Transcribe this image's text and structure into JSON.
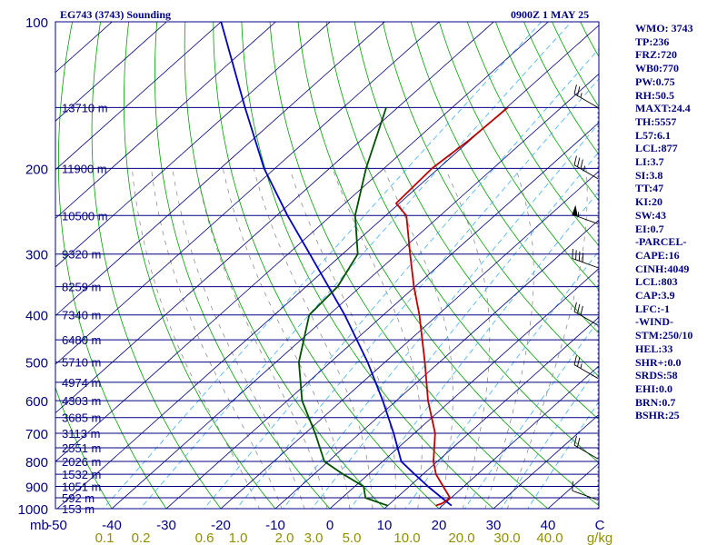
{
  "header": {
    "station": "EG743 (3743) Sounding",
    "time": "0900Z  1 MAY 25"
  },
  "indices": [
    "WMO: 3743",
    "TP:236",
    "FRZ:720",
    "WB0:770",
    "PW:0.75",
    "RH:50.5",
    "MAXT:24.4",
    "TH:5557",
    "L57:6.1",
    "LCL:877",
    "LI:3.7",
    "SI:3.8",
    "TT:47",
    "KI:20",
    "SW:43",
    "EI:0.7",
    "-PARCEL-",
    "CAPE:16",
    "CINH:4049",
    "LCL:803",
    "CAP:3.9",
    "LFC:-1",
    "-WIND-",
    "STM:250/10",
    "HEL:33",
    "SHR+:0.0",
    "SRDS:58",
    "EHI:0.0",
    "BRN:0.7",
    "BSHR:25"
  ],
  "colors": {
    "frame": "#000080",
    "isobar": "#000080",
    "isotherm": "#000080",
    "dry_adiabat": "#00a000",
    "moist_adiabat": "#808080",
    "mixing_ratio": "#40b0ff",
    "temperature": "#c00000",
    "dewpoint": "#005000",
    "parcel": "#0000c0",
    "axis_text": "#000080",
    "mixing_text": "#909000",
    "wind_barb": "#000000"
  },
  "chart_data": {
    "type": "skew-t",
    "pressure_labels": [
      "100",
      "200",
      "300",
      "400",
      "500",
      "600",
      "700",
      "800",
      "900",
      "1000"
    ],
    "pressure_unit": "mb",
    "height_labels": [
      {
        "p": 150,
        "label": "13710 m"
      },
      {
        "p": 200,
        "label": "11900 m"
      },
      {
        "p": 250,
        "label": "10500 m"
      },
      {
        "p": 300,
        "label": "9320 m"
      },
      {
        "p": 350,
        "label": "8259 m"
      },
      {
        "p": 400,
        "label": "7340 m"
      },
      {
        "p": 450,
        "label": "6480 m"
      },
      {
        "p": 500,
        "label": "5710 m"
      },
      {
        "p": 550,
        "label": "4974 m"
      },
      {
        "p": 600,
        "label": "4303 m"
      },
      {
        "p": 650,
        "label": "3685 m"
      },
      {
        "p": 700,
        "label": "3113 m"
      },
      {
        "p": 750,
        "label": "2551 m"
      },
      {
        "p": 800,
        "label": "2026 m"
      },
      {
        "p": 850,
        "label": "1532 m"
      },
      {
        "p": 900,
        "label": "1051 m"
      },
      {
        "p": 950,
        "label": "592 m"
      },
      {
        "p": 1000,
        "label": "153 m"
      }
    ],
    "temperature_ticks": [
      "-50",
      "-40",
      "-30",
      "-20",
      "-10",
      "0",
      "10",
      "20",
      "30",
      "40"
    ],
    "temperature_unit": "C",
    "mixing_ratio_labels": [
      "0.1",
      "0.2",
      "0.6",
      "1.0",
      "2.0",
      "3.0",
      "5.0",
      "10.0",
      "20.0",
      "30.0",
      "40.0"
    ],
    "mixing_ratio_unit": "g/kg",
    "temperature_profile": [
      {
        "p": 986,
        "t": 18.8
      },
      {
        "p": 975,
        "t": 19.5
      },
      {
        "p": 950,
        "t": 19.8
      },
      {
        "p": 900,
        "t": 16.2
      },
      {
        "p": 850,
        "t": 12.4
      },
      {
        "p": 800,
        "t": 9.3
      },
      {
        "p": 700,
        "t": 3.8
      },
      {
        "p": 600,
        "t": -4.2
      },
      {
        "p": 500,
        "t": -12.7
      },
      {
        "p": 400,
        "t": -23.4
      },
      {
        "p": 350,
        "t": -30.2
      },
      {
        "p": 300,
        "t": -37.6
      },
      {
        "p": 250,
        "t": -46.2
      },
      {
        "p": 236,
        "t": -50.6
      },
      {
        "p": 200,
        "t": -51.2
      },
      {
        "p": 175,
        "t": -50.2
      },
      {
        "p": 150,
        "t": -49.8
      }
    ],
    "dewpoint_profile": [
      {
        "p": 986,
        "td": 10.0
      },
      {
        "p": 950,
        "td": 4.3
      },
      {
        "p": 900,
        "td": 1.6
      },
      {
        "p": 850,
        "td": -4.6
      },
      {
        "p": 800,
        "td": -10.7
      },
      {
        "p": 700,
        "td": -18.2
      },
      {
        "p": 600,
        "td": -27.3
      },
      {
        "p": 500,
        "td": -35.8
      },
      {
        "p": 400,
        "td": -43.6
      },
      {
        "p": 350,
        "td": -44.2
      },
      {
        "p": 300,
        "td": -47.2
      },
      {
        "p": 250,
        "td": -55.6
      },
      {
        "p": 200,
        "td": -63.3
      },
      {
        "p": 150,
        "td": -72.1
      }
    ],
    "parcel_profile": [
      {
        "p": 986,
        "t": 21.7
      },
      {
        "p": 950,
        "t": 18.3
      },
      {
        "p": 900,
        "t": 13.4
      },
      {
        "p": 850,
        "t": 8.5
      },
      {
        "p": 800,
        "t": 3.4
      },
      {
        "p": 700,
        "t": -3.8
      },
      {
        "p": 600,
        "t": -12.5
      },
      {
        "p": 500,
        "t": -23.2
      },
      {
        "p": 400,
        "t": -37.1
      },
      {
        "p": 300,
        "t": -56.0
      },
      {
        "p": 250,
        "t": -68.0
      },
      {
        "p": 200,
        "t": -82.0
      },
      {
        "p": 150,
        "t": -98.0
      },
      {
        "p": 100,
        "t": -120.0
      }
    ],
    "wind_barbs": [
      {
        "p": 960,
        "dir": 290,
        "kt": 10
      },
      {
        "p": 790,
        "dir": 300,
        "kt": 20
      },
      {
        "p": 540,
        "dir": 300,
        "kt": 25
      },
      {
        "p": 420,
        "dir": 300,
        "kt": 30
      },
      {
        "p": 320,
        "dir": 290,
        "kt": 40
      },
      {
        "p": 260,
        "dir": 290,
        "kt": 55
      },
      {
        "p": 210,
        "dir": 300,
        "kt": 35
      },
      {
        "p": 150,
        "dir": 300,
        "kt": 25
      }
    ]
  }
}
